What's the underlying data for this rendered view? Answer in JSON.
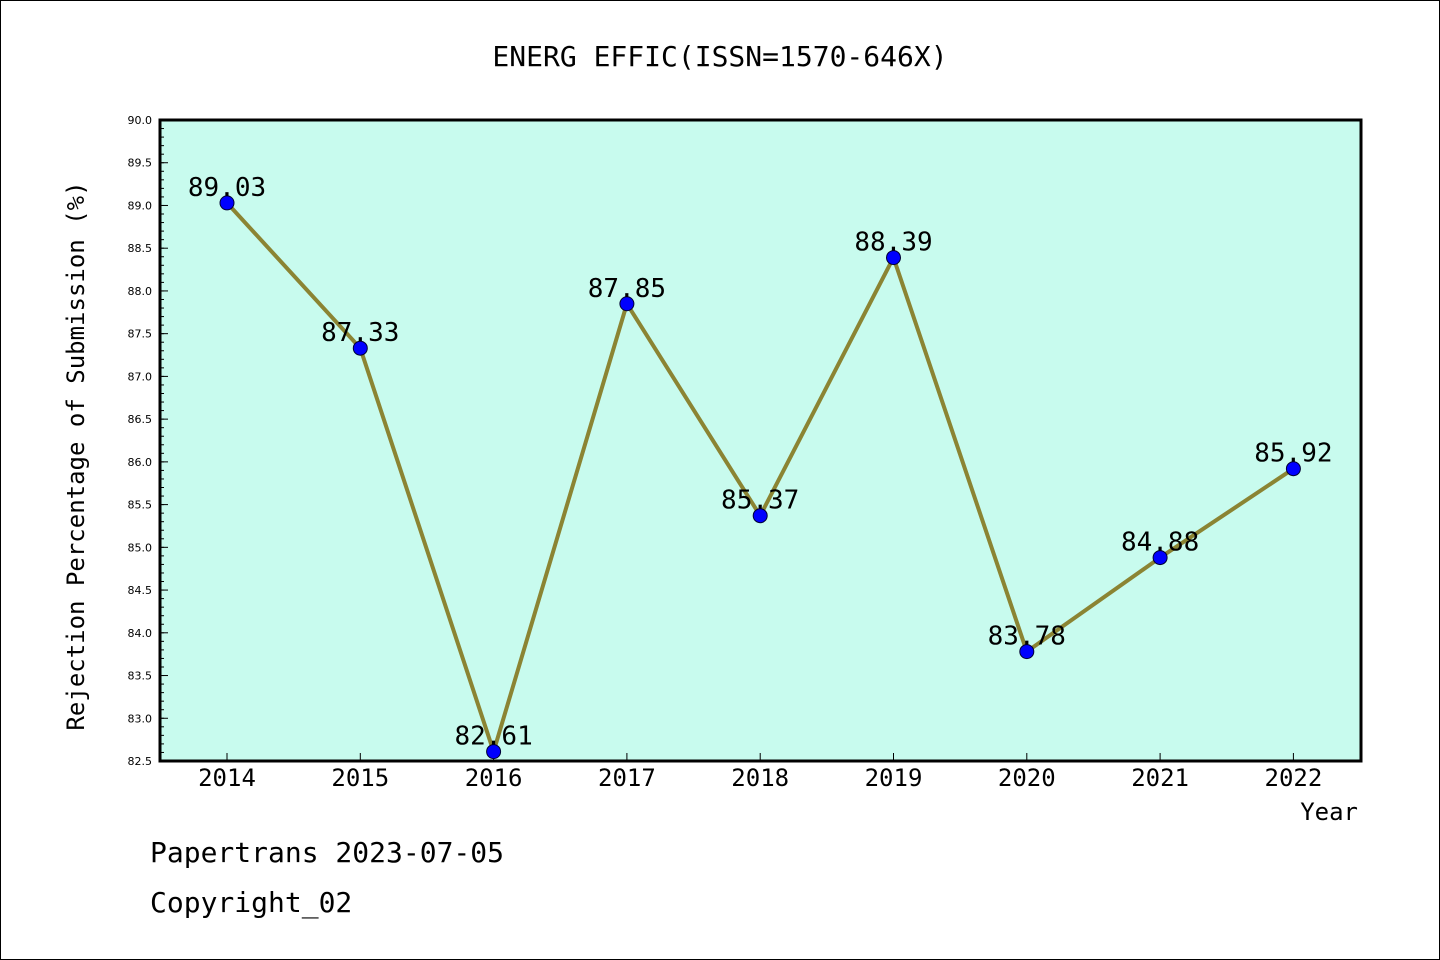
{
  "chart_data": {
    "type": "line",
    "title": "ENERG EFFIC(ISSN=1570-646X)",
    "xlabel": "Year",
    "ylabel": "Rejection Percentage of Submission (%)",
    "x": [
      "2014",
      "2015",
      "2016",
      "2017",
      "2018",
      "2019",
      "2020",
      "2021",
      "2022"
    ],
    "series": [
      {
        "values": [
          89.03,
          87.33,
          82.61,
          87.85,
          85.37,
          88.39,
          83.78,
          84.88,
          85.92
        ]
      }
    ],
    "data_labels": [
      "89.03",
      "87.33",
      "82.61",
      "87.85",
      "85.37",
      "88.39",
      "83.78",
      "84.88",
      "85.92"
    ],
    "ylim": [
      82.5,
      90.0
    ],
    "yticks": [
      "82.5",
      "83.0",
      "83.5",
      "84.0",
      "84.5",
      "85.0",
      "85.5",
      "86.0",
      "86.5",
      "87.0",
      "87.5",
      "88.0",
      "88.5",
      "89.0",
      "89.5",
      "90.0"
    ],
    "grid": false,
    "legend": "none",
    "colors": {
      "plot_background": "#c8fbee",
      "line": "#8b8433",
      "marker": "#0000ff"
    }
  },
  "footer": {
    "line1": "Papertrans 2023-07-05",
    "line2": "Copyright_02"
  }
}
